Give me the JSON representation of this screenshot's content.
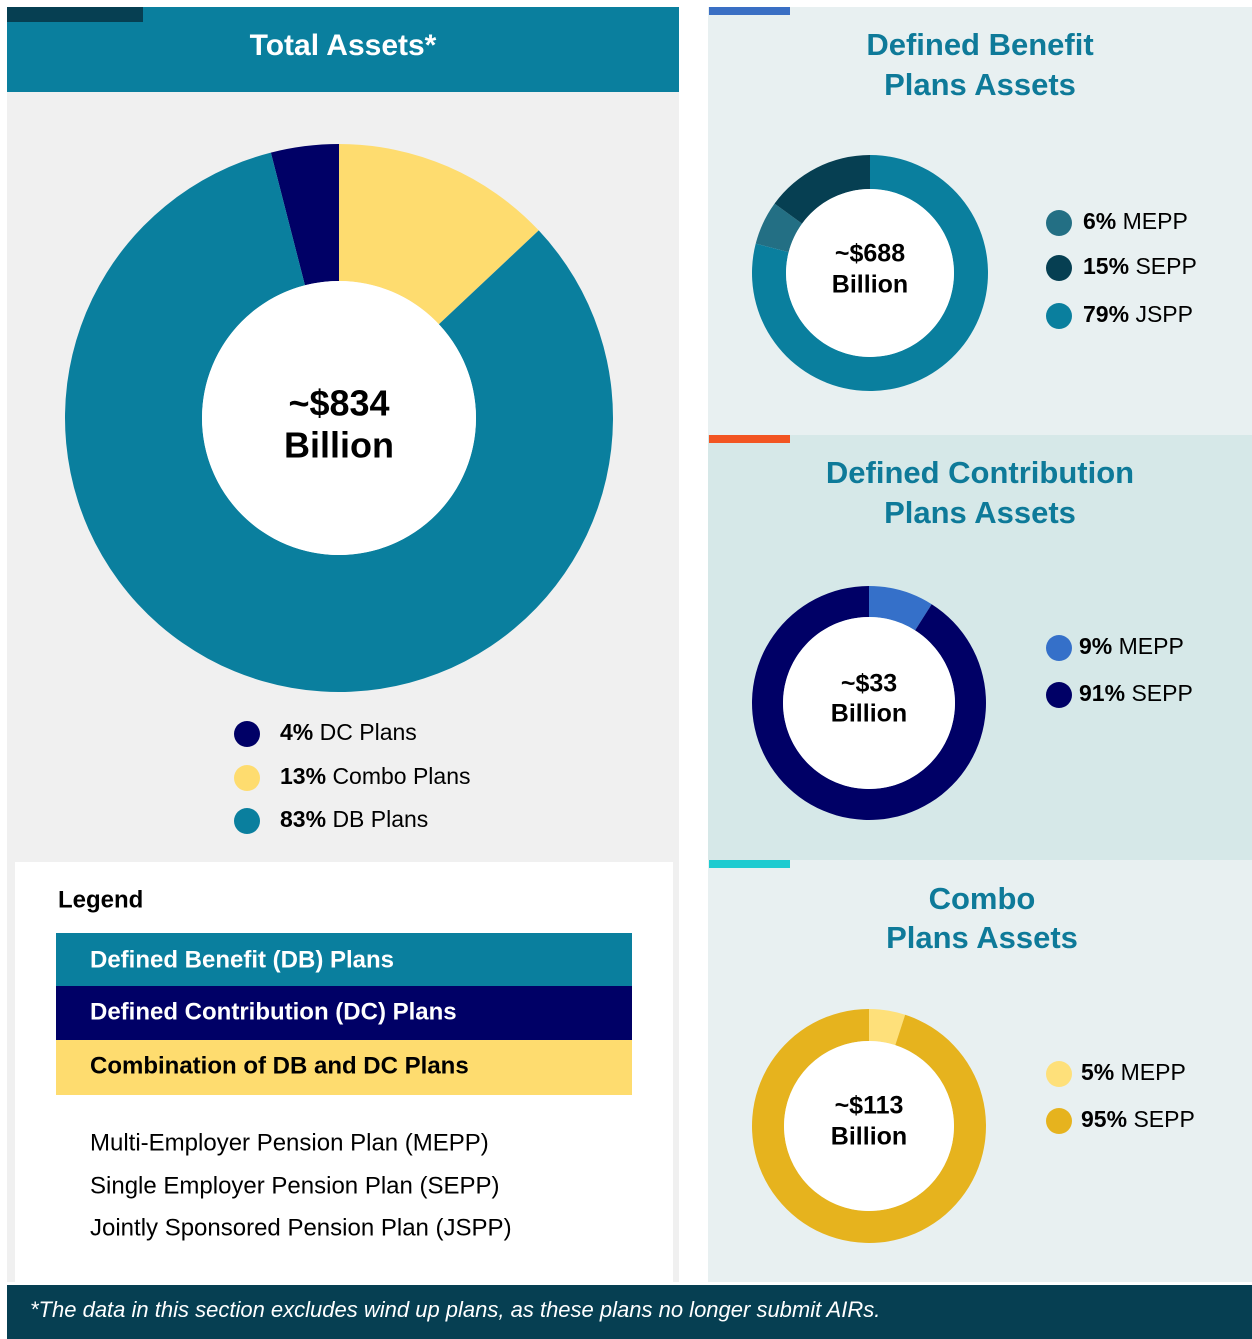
{
  "chart_data": [
    {
      "type": "donut",
      "title": [
        "Total Assets*"
      ],
      "center_label": [
        "~$834",
        "Billion"
      ],
      "categories": [
        "DC Plans",
        "Combo Plans",
        "DB Plans"
      ],
      "values": [
        4,
        13,
        83
      ],
      "value_labels": [
        "4%",
        "13%",
        "83%"
      ],
      "colors": [
        "#000066",
        "#fedc6f",
        "#0a7f9e"
      ]
    },
    {
      "type": "donut",
      "title": [
        "Defined Benefit",
        "Plans Assets"
      ],
      "center_label": [
        "~$688",
        "Billion"
      ],
      "categories": [
        "MEPP",
        "SEPP",
        "JSPP"
      ],
      "values": [
        6,
        15,
        79
      ],
      "value_labels": [
        "6%",
        "15%",
        "79%"
      ],
      "colors": [
        "#236f84",
        "#063f52",
        "#0a7f9e"
      ]
    },
    {
      "type": "donut",
      "title": [
        "Defined Contribution",
        "Plans Assets"
      ],
      "center_label": [
        "~$33",
        "Billion"
      ],
      "categories": [
        "MEPP",
        "SEPP"
      ],
      "values": [
        9,
        91
      ],
      "value_labels": [
        "9%",
        "91%"
      ],
      "colors": [
        "#3570c9",
        "#000066"
      ]
    },
    {
      "type": "donut",
      "title": [
        "Combo",
        "Plans Assets"
      ],
      "center_label": [
        "~$113",
        "Billion"
      ],
      "categories": [
        "MEPP",
        "SEPP"
      ],
      "values": [
        5,
        95
      ],
      "value_labels": [
        "5%",
        "95%"
      ],
      "colors": [
        "#fee07a",
        "#e6b31e"
      ]
    }
  ],
  "legend": {
    "title": "Legend",
    "items": [
      "Defined Benefit (DB) Plans",
      "Defined Contribution (DC) Plans",
      "Combination of DB and DC Plans"
    ],
    "definitions": [
      "Multi-Employer Pension Plan (MEPP)",
      "Single Employer Pension Plan (SEPP)",
      "Jointly Sponsored Pension Plan (JSPP)"
    ]
  },
  "footnote": "*The data in this section excludes wind up plans, as these plans no longer submit AIRs."
}
